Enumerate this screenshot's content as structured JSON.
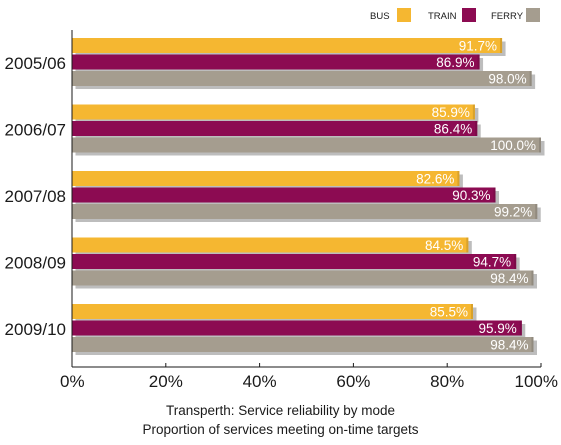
{
  "chart_data": {
    "type": "bar",
    "orientation": "horizontal",
    "title": "Transperth: Service reliability by mode",
    "subtitle": "Proportion of services meeting on-time targets",
    "categories": [
      "2005/06",
      "2006/07",
      "2007/08",
      "2008/09",
      "2009/10"
    ],
    "series": [
      {
        "name": "BUS",
        "color": "#f5b731",
        "values": [
          91.7,
          85.9,
          82.6,
          84.5,
          85.5
        ],
        "labels": [
          "91.7%",
          "85.9%",
          "82.6%",
          "84.5%",
          "85.5%"
        ]
      },
      {
        "name": "TRAIN",
        "color": "#8c0b52",
        "values": [
          86.9,
          86.4,
          90.3,
          94.7,
          95.9
        ],
        "labels": [
          "86.9%",
          "86.4%",
          "90.3%",
          "94.7%",
          "95.9%"
        ]
      },
      {
        "name": "FERRY",
        "color": "#a59d8f",
        "values": [
          98.0,
          100.0,
          99.2,
          98.4,
          98.4
        ],
        "labels": [
          "98.0%",
          "100.0%",
          "99.2%",
          "98.4%",
          "98.4%"
        ]
      }
    ],
    "x_ticks": [
      "0%",
      "20%",
      "40%",
      "60%",
      "80%",
      "100%"
    ],
    "xlim": [
      0,
      100
    ],
    "grid": false,
    "legend_position": "top-right"
  }
}
